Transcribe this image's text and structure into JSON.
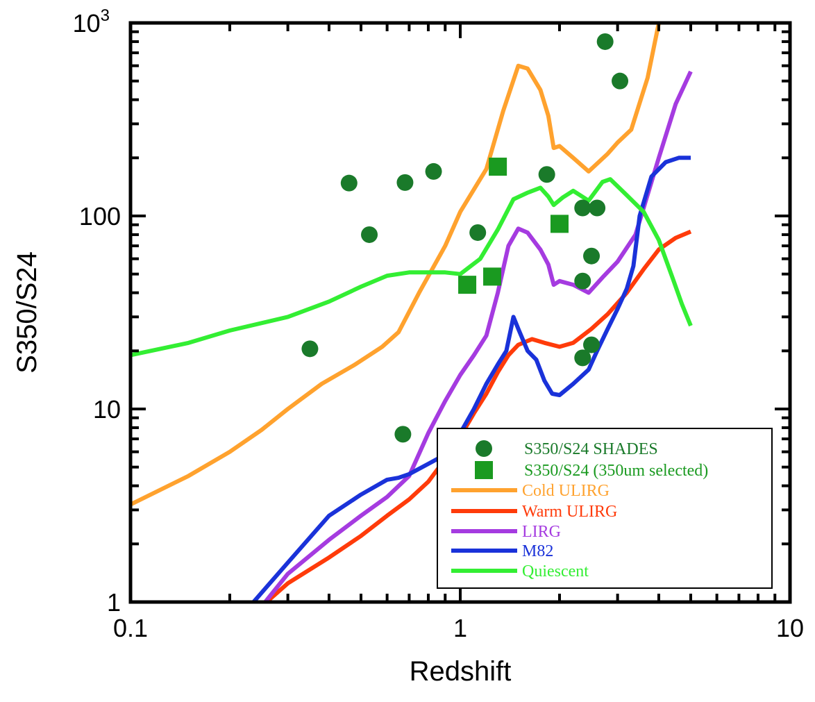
{
  "chart_data": {
    "type": "scatter",
    "xlabel": "Redshift",
    "ylabel": "S350/S24",
    "xscale": "log",
    "yscale": "log",
    "xlim": [
      0.1,
      10
    ],
    "ylim": [
      1,
      1000
    ],
    "x_tick_labels": [
      "0.1",
      "1",
      "10"
    ],
    "y_tick_labels": [
      {
        "base": "1",
        "exp": ""
      },
      {
        "base": "10",
        "exp": ""
      },
      {
        "base": "100",
        "exp": ""
      },
      {
        "base": "10",
        "exp": "3"
      }
    ],
    "grid": false,
    "legend_position": "bottom-right",
    "scatter_series": [
      {
        "name": "S350/S24 SHADES",
        "marker": "circle",
        "color": "#1a7a2a",
        "points": [
          [
            0.35,
            20.5
          ],
          [
            0.46,
            148
          ],
          [
            0.53,
            80
          ],
          [
            0.67,
            7.4
          ],
          [
            0.68,
            149
          ],
          [
            0.83,
            170
          ],
          [
            1.13,
            82
          ],
          [
            1.83,
            164
          ],
          [
            2.35,
            110
          ],
          [
            2.35,
            46
          ],
          [
            2.35,
            18.4
          ],
          [
            2.5,
            62
          ],
          [
            2.5,
            21.5
          ],
          [
            2.6,
            110
          ],
          [
            2.75,
            800
          ],
          [
            3.05,
            500
          ]
        ]
      },
      {
        "name": "S350/S24 (350um selected)",
        "marker": "square",
        "color": "#1a9a20",
        "points": [
          [
            1.05,
            44
          ],
          [
            1.25,
            48.5
          ],
          [
            1.3,
            180
          ],
          [
            2.0,
            91
          ]
        ]
      }
    ],
    "line_series": [
      {
        "name": "Cold ULIRG",
        "color": "#ffa22e",
        "points": [
          [
            0.1,
            3.2
          ],
          [
            0.15,
            4.5
          ],
          [
            0.2,
            6
          ],
          [
            0.25,
            7.8
          ],
          [
            0.3,
            10
          ],
          [
            0.38,
            13.5
          ],
          [
            0.48,
            17
          ],
          [
            0.58,
            21
          ],
          [
            0.65,
            25
          ],
          [
            0.75,
            40
          ],
          [
            0.9,
            70
          ],
          [
            1.0,
            105
          ],
          [
            1.2,
            175
          ],
          [
            1.35,
            350
          ],
          [
            1.5,
            600
          ],
          [
            1.6,
            580
          ],
          [
            1.75,
            450
          ],
          [
            1.85,
            330
          ],
          [
            1.92,
            225
          ],
          [
            2.0,
            230
          ],
          [
            2.2,
            200
          ],
          [
            2.45,
            170
          ],
          [
            2.8,
            210
          ],
          [
            3.0,
            240
          ],
          [
            3.3,
            280
          ],
          [
            3.7,
            520
          ],
          [
            4.0,
            1000
          ]
        ]
      },
      {
        "name": "Warm ULIRG",
        "color": "#ff3b0a",
        "points": [
          [
            0.25,
            0.95
          ],
          [
            0.3,
            1.25
          ],
          [
            0.4,
            1.7
          ],
          [
            0.5,
            2.2
          ],
          [
            0.6,
            2.8
          ],
          [
            0.7,
            3.4
          ],
          [
            0.8,
            4.2
          ],
          [
            0.9,
            5.5
          ],
          [
            1.0,
            7.2
          ],
          [
            1.1,
            9.5
          ],
          [
            1.2,
            12
          ],
          [
            1.3,
            15.5
          ],
          [
            1.4,
            19
          ],
          [
            1.5,
            21.5
          ],
          [
            1.65,
            23
          ],
          [
            1.8,
            22
          ],
          [
            2.0,
            21
          ],
          [
            2.2,
            22
          ],
          [
            2.5,
            26
          ],
          [
            2.8,
            31
          ],
          [
            3.2,
            40
          ],
          [
            3.6,
            53
          ],
          [
            4.0,
            67
          ],
          [
            4.5,
            77
          ],
          [
            5.0,
            83
          ]
        ]
      },
      {
        "name": "LIRG",
        "color": "#a53be0",
        "points": [
          [
            0.25,
            0.95
          ],
          [
            0.3,
            1.4
          ],
          [
            0.4,
            2.1
          ],
          [
            0.5,
            2.8
          ],
          [
            0.6,
            3.5
          ],
          [
            0.7,
            4.5
          ],
          [
            0.8,
            7.5
          ],
          [
            0.9,
            11
          ],
          [
            1.0,
            15
          ],
          [
            1.1,
            19
          ],
          [
            1.2,
            24
          ],
          [
            1.3,
            40
          ],
          [
            1.4,
            70
          ],
          [
            1.5,
            86
          ],
          [
            1.6,
            82
          ],
          [
            1.75,
            67
          ],
          [
            1.85,
            56
          ],
          [
            1.92,
            44
          ],
          [
            2.0,
            46
          ],
          [
            2.2,
            44
          ],
          [
            2.45,
            40
          ],
          [
            2.7,
            48
          ],
          [
            3.0,
            58
          ],
          [
            3.4,
            80
          ],
          [
            4.0,
            200
          ],
          [
            4.5,
            380
          ],
          [
            5.0,
            560
          ]
        ]
      },
      {
        "name": "M82",
        "color": "#1a32d9",
        "points": [
          [
            0.23,
            0.95
          ],
          [
            0.3,
            1.6
          ],
          [
            0.4,
            2.8
          ],
          [
            0.5,
            3.6
          ],
          [
            0.6,
            4.3
          ],
          [
            0.65,
            4.4
          ],
          [
            0.7,
            4.6
          ],
          [
            0.8,
            5.2
          ],
          [
            0.9,
            5.8
          ],
          [
            1.0,
            7.5
          ],
          [
            1.1,
            10
          ],
          [
            1.2,
            13.5
          ],
          [
            1.3,
            17
          ],
          [
            1.38,
            20
          ],
          [
            1.45,
            30
          ],
          [
            1.5,
            26
          ],
          [
            1.6,
            20
          ],
          [
            1.7,
            18
          ],
          [
            1.8,
            14
          ],
          [
            1.9,
            12
          ],
          [
            2.0,
            11.8
          ],
          [
            2.2,
            13.5
          ],
          [
            2.45,
            16
          ],
          [
            2.6,
            20
          ],
          [
            2.8,
            26
          ],
          [
            3.0,
            33
          ],
          [
            3.2,
            42
          ],
          [
            3.35,
            55
          ],
          [
            3.5,
            100
          ],
          [
            3.8,
            160
          ],
          [
            4.2,
            190
          ],
          [
            4.6,
            200
          ],
          [
            5.0,
            200
          ]
        ]
      },
      {
        "name": "Quiescent",
        "color": "#33ee33",
        "points": [
          [
            0.1,
            19
          ],
          [
            0.15,
            22
          ],
          [
            0.2,
            25.5
          ],
          [
            0.3,
            30
          ],
          [
            0.4,
            36
          ],
          [
            0.5,
            43
          ],
          [
            0.6,
            49
          ],
          [
            0.7,
            51
          ],
          [
            0.8,
            51
          ],
          [
            0.9,
            51
          ],
          [
            1.0,
            50
          ],
          [
            1.15,
            60
          ],
          [
            1.3,
            85
          ],
          [
            1.45,
            122
          ],
          [
            1.6,
            132
          ],
          [
            1.75,
            140
          ],
          [
            1.85,
            126
          ],
          [
            1.92,
            114
          ],
          [
            2.05,
            125
          ],
          [
            2.2,
            135
          ],
          [
            2.45,
            120
          ],
          [
            2.7,
            150
          ],
          [
            2.85,
            155
          ],
          [
            3.2,
            128
          ],
          [
            3.6,
            105
          ],
          [
            4.0,
            75
          ],
          [
            4.4,
            48
          ],
          [
            4.7,
            35
          ],
          [
            5.0,
            27
          ]
        ]
      }
    ]
  }
}
